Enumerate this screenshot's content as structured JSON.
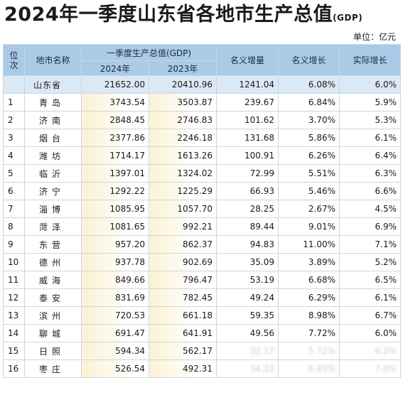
{
  "title": {
    "main": "2024年一季度山东省各地市生产总值",
    "suffix": "(GDP)"
  },
  "unit": "单位：亿元",
  "headers": {
    "rank": "位次",
    "city": "地市名称",
    "gdp_group": "一季度生产总值(GDP)",
    "y2024": "2024年",
    "y2023": "2023年",
    "nominal_inc": "名义增量",
    "nominal_growth": "名义增长",
    "real_growth": "实际增长"
  },
  "province": {
    "name": "山东省",
    "y2024": "21652.00",
    "y2023": "20410.96",
    "inc": "1241.04",
    "ng": "6.08%",
    "rg": "6.0%"
  },
  "rows": [
    {
      "rank": "1",
      "city": "青岛",
      "y2024": "3743.54",
      "y2023": "3503.87",
      "inc": "239.67",
      "ng": "6.84%",
      "rg": "5.9%"
    },
    {
      "rank": "2",
      "city": "济南",
      "y2024": "2848.45",
      "y2023": "2746.83",
      "inc": "101.62",
      "ng": "3.70%",
      "rg": "5.3%"
    },
    {
      "rank": "3",
      "city": "烟台",
      "y2024": "2377.86",
      "y2023": "2246.18",
      "inc": "131.68",
      "ng": "5.86%",
      "rg": "6.1%"
    },
    {
      "rank": "4",
      "city": "潍坊",
      "y2024": "1714.17",
      "y2023": "1613.26",
      "inc": "100.91",
      "ng": "6.26%",
      "rg": "6.4%"
    },
    {
      "rank": "5",
      "city": "临沂",
      "y2024": "1397.01",
      "y2023": "1324.02",
      "inc": "72.99",
      "ng": "5.51%",
      "rg": "6.3%"
    },
    {
      "rank": "6",
      "city": "济宁",
      "y2024": "1292.22",
      "y2023": "1225.29",
      "inc": "66.93",
      "ng": "5.46%",
      "rg": "6.6%"
    },
    {
      "rank": "7",
      "city": "淄博",
      "y2024": "1085.95",
      "y2023": "1057.70",
      "inc": "28.25",
      "ng": "2.67%",
      "rg": "4.5%"
    },
    {
      "rank": "8",
      "city": "菏泽",
      "y2024": "1081.65",
      "y2023": "992.21",
      "inc": "89.44",
      "ng": "9.01%",
      "rg": "6.9%"
    },
    {
      "rank": "9",
      "city": "东营",
      "y2024": "957.20",
      "y2023": "862.37",
      "inc": "94.83",
      "ng": "11.00%",
      "rg": "7.1%"
    },
    {
      "rank": "10",
      "city": "德州",
      "y2024": "937.78",
      "y2023": "902.69",
      "inc": "35.09",
      "ng": "3.89%",
      "rg": "5.2%"
    },
    {
      "rank": "11",
      "city": "威海",
      "y2024": "849.66",
      "y2023": "796.47",
      "inc": "53.19",
      "ng": "6.68%",
      "rg": "6.5%"
    },
    {
      "rank": "12",
      "city": "泰安",
      "y2024": "831.69",
      "y2023": "782.45",
      "inc": "49.24",
      "ng": "6.29%",
      "rg": "6.1%"
    },
    {
      "rank": "13",
      "city": "滨州",
      "y2024": "720.53",
      "y2023": "661.18",
      "inc": "59.35",
      "ng": "8.98%",
      "rg": "6.7%"
    },
    {
      "rank": "14",
      "city": "聊城",
      "y2024": "691.47",
      "y2023": "641.91",
      "inc": "49.56",
      "ng": "7.72%",
      "rg": "6.0%"
    },
    {
      "rank": "15",
      "city": "日照",
      "y2024": "594.34",
      "y2023": "562.17",
      "inc": "32.17",
      "ng": "5.72%",
      "rg": "6.2%"
    },
    {
      "rank": "16",
      "city": "枣庄",
      "y2024": "526.54",
      "y2023": "492.31",
      "inc": "34.23",
      "ng": "6.95%",
      "rg": "7.0%"
    }
  ]
}
